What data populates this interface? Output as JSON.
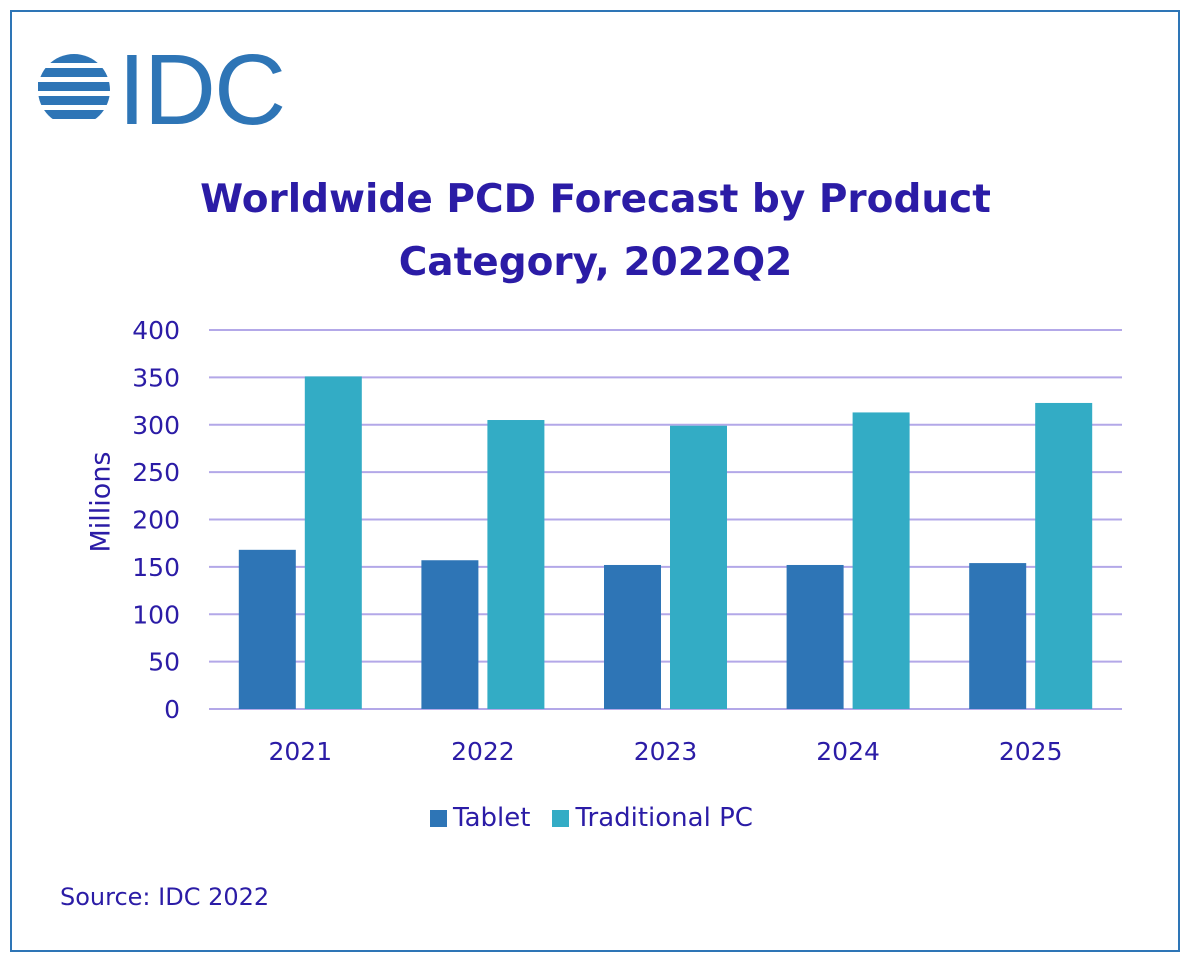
{
  "logo": {
    "text": "IDC"
  },
  "chart_data": {
    "type": "bar",
    "title": "Worldwide PCD Forecast by Product Category, 2022Q2",
    "title_lines": [
      "Worldwide PCD Forecast by Product",
      "Category, 2022Q2"
    ],
    "xlabel": "",
    "ylabel": "Millions",
    "categories": [
      "2021",
      "2022",
      "2023",
      "2024",
      "2025"
    ],
    "series": [
      {
        "name": "Tablet",
        "color": "#2e75b6",
        "values": [
          168,
          157,
          152,
          152,
          154
        ]
      },
      {
        "name": "Traditional PC",
        "color": "#33acc5",
        "values": [
          351,
          305,
          299,
          313,
          323
        ]
      }
    ],
    "ylim": [
      0,
      400
    ],
    "yticks": [
      "0",
      "50",
      "100",
      "150",
      "200",
      "250",
      "300",
      "350",
      "400"
    ],
    "grid": true,
    "gridline_color": "#b3a8e8",
    "text_color": "#2b1ca6",
    "legend_position": "bottom"
  },
  "source": "Source: IDC 2022"
}
